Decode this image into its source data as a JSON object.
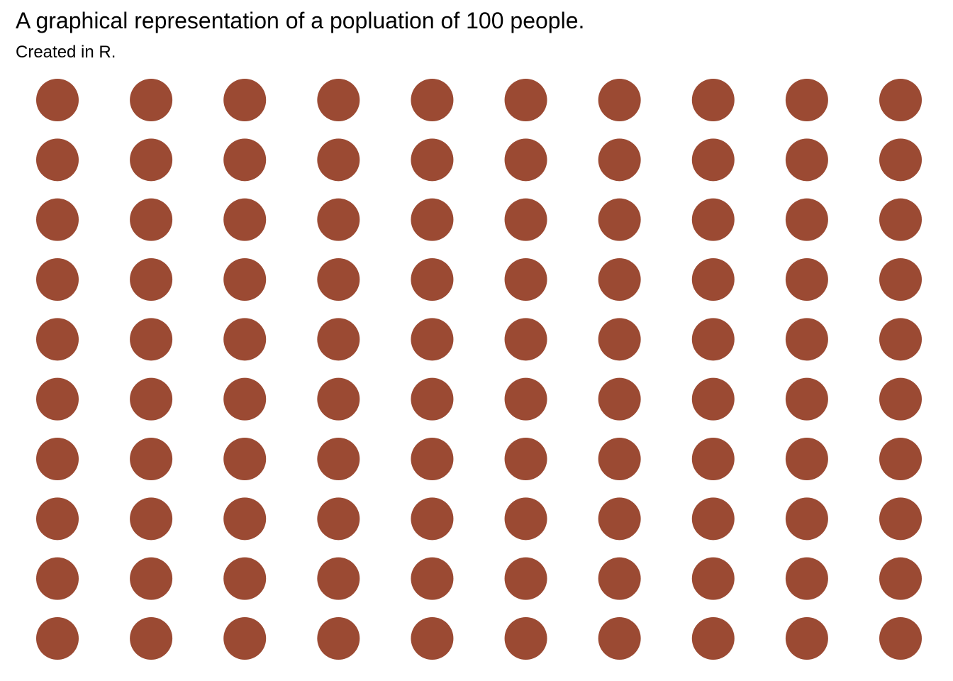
{
  "chart_data": {
    "type": "scatter",
    "title": "A graphical representation of a popluation of 100 people.",
    "subtitle": "Created in R.",
    "xlabel": "",
    "ylabel": "",
    "grid": false,
    "legend": "none",
    "point_color": "#9B4A33",
    "x": [
      1,
      2,
      3,
      4,
      5,
      6,
      7,
      8,
      9,
      10
    ],
    "y": [
      1,
      2,
      3,
      4,
      5,
      6,
      7,
      8,
      9,
      10
    ],
    "xlim": [
      1,
      10
    ],
    "ylim": [
      1,
      10
    ],
    "points_count": 100
  }
}
